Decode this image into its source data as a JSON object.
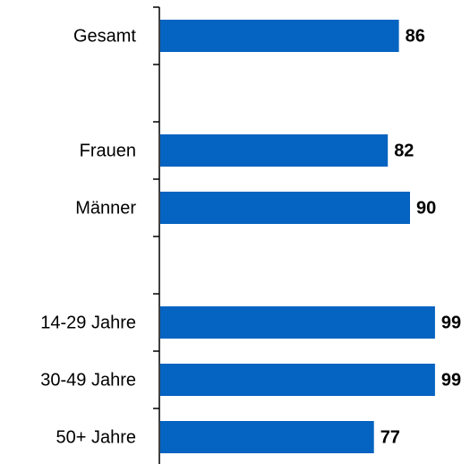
{
  "chart_data": {
    "type": "bar",
    "categories": [
      "Gesamt",
      null,
      "Frauen",
      "Männer",
      null,
      "14-29 Jahre",
      "30-49 Jahre",
      "50+ Jahre"
    ],
    "values": [
      86,
      null,
      82,
      90,
      null,
      99,
      99,
      77
    ],
    "color": "#0563c1"
  }
}
